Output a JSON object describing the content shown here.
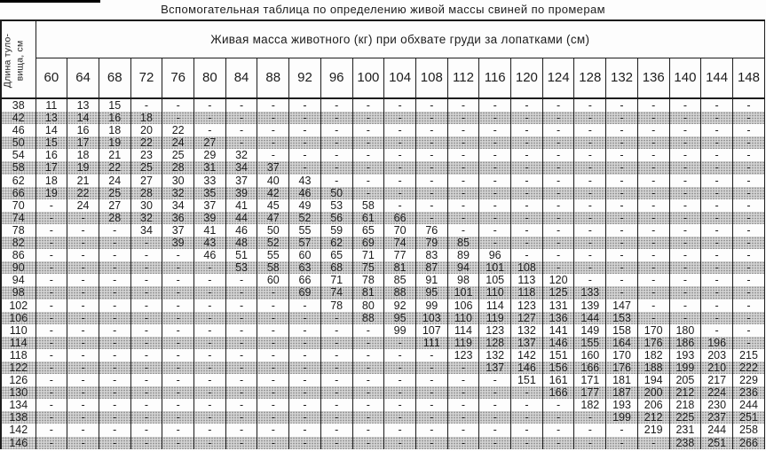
{
  "page_title": "Вспомогательная таблица по определению живой массы свиней по промерам",
  "colors": {
    "ink": "#1c1c1c",
    "paper": "#fdfdfd",
    "shade_base": "#d6d6d6",
    "shade_dot": "#979797"
  },
  "table": {
    "corner_label_line1": "Длина туло-",
    "corner_label_line2": "вища, см",
    "span_header": "Живая масса животного (кг) при обхвате груди за лопатками (см)",
    "col_headers": [
      "60",
      "64",
      "68",
      "72",
      "76",
      "80",
      "84",
      "88",
      "92",
      "96",
      "100",
      "104",
      "108",
      "112",
      "116",
      "120",
      "124",
      "128",
      "132",
      "136",
      "140",
      "144",
      "148"
    ],
    "rows": [
      {
        "label": "38",
        "cells": [
          "11",
          "13",
          "15",
          "-",
          "-",
          "-",
          "-",
          "-",
          "-",
          "-",
          "-",
          "-",
          "-",
          "-",
          "-",
          "-",
          "-",
          "-",
          "-",
          "-",
          "-",
          "-",
          "-"
        ]
      },
      {
        "label": "42",
        "cells": [
          "13",
          "14",
          "16",
          "18",
          "-",
          "-",
          "-",
          "-",
          "-",
          "-",
          "-",
          "-",
          "-",
          "-",
          "-",
          "-",
          "-",
          "-",
          "-",
          "-",
          "-",
          "-",
          "-"
        ]
      },
      {
        "label": "46",
        "cells": [
          "14",
          "16",
          "18",
          "20",
          "22",
          "-",
          "-",
          "-",
          "-",
          "-",
          "-",
          "-",
          "-",
          "-",
          "-",
          "-",
          "-",
          "-",
          "-",
          "-",
          "-",
          "-",
          "-"
        ]
      },
      {
        "label": "50",
        "cells": [
          "15",
          "17",
          "19",
          "22",
          "24",
          "27",
          "-",
          "-",
          "-",
          "-",
          "-",
          "-",
          "-",
          "-",
          "-",
          "-",
          "-",
          "-",
          "-",
          "-",
          "-",
          "-",
          "-"
        ]
      },
      {
        "label": "54",
        "cells": [
          "16",
          "18",
          "21",
          "23",
          "25",
          "29",
          "32",
          "-",
          "-",
          "-",
          "-",
          "-",
          "-",
          "-",
          "-",
          "-",
          "-",
          "-",
          "-",
          "-",
          "-",
          "-",
          "-"
        ]
      },
      {
        "label": "58",
        "cells": [
          "17",
          "19",
          "22",
          "25",
          "28",
          "31",
          "34",
          "37",
          "-",
          "-",
          "-",
          "-",
          "-",
          "-",
          "-",
          "-",
          "-",
          "-",
          "-",
          "-",
          "-",
          "-",
          "-"
        ]
      },
      {
        "label": "62",
        "cells": [
          "18",
          "21",
          "24",
          "27",
          "30",
          "33",
          "37",
          "40",
          "43",
          "-",
          "-",
          "-",
          "-",
          "-",
          "-",
          "-",
          "-",
          "-",
          "-",
          "-",
          "-",
          "-",
          "-"
        ]
      },
      {
        "label": "66",
        "cells": [
          "19",
          "22",
          "25",
          "28",
          "32",
          "35",
          "39",
          "42",
          "46",
          "50",
          "-",
          "-",
          "-",
          "-",
          "-",
          "-",
          "-",
          "-",
          "-",
          "-",
          "-",
          "-",
          "-"
        ]
      },
      {
        "label": "70",
        "cells": [
          "-",
          "24",
          "27",
          "30",
          "34",
          "37",
          "41",
          "45",
          "49",
          "53",
          "58",
          "-",
          "-",
          "-",
          "-",
          "-",
          "-",
          "-",
          "-",
          "-",
          "-",
          "-",
          "-"
        ]
      },
      {
        "label": "74",
        "cells": [
          "-",
          "-",
          "28",
          "32",
          "36",
          "39",
          "44",
          "47",
          "52",
          "56",
          "61",
          "66",
          "-",
          "-",
          "-",
          "-",
          "-",
          "-",
          "-",
          "-",
          "-",
          "-",
          "-"
        ]
      },
      {
        "label": "78",
        "cells": [
          "-",
          "-",
          "-",
          "34",
          "37",
          "41",
          "46",
          "50",
          "55",
          "59",
          "65",
          "70",
          "76",
          "-",
          "-",
          "-",
          "-",
          "-",
          "-",
          "-",
          "-",
          "-",
          "-"
        ]
      },
      {
        "label": "82",
        "cells": [
          "-",
          "-",
          "-",
          "-",
          "39",
          "43",
          "48",
          "52",
          "57",
          "62",
          "69",
          "74",
          "79",
          "85",
          "-",
          "-",
          "-",
          "-",
          "-",
          "-",
          "-",
          "-",
          "-"
        ]
      },
      {
        "label": "86",
        "cells": [
          "-",
          "-",
          "-",
          "-",
          "-",
          "46",
          "51",
          "55",
          "60",
          "65",
          "71",
          "77",
          "83",
          "89",
          "96",
          "-",
          "-",
          "-",
          "-",
          "-",
          "-",
          "-",
          "-"
        ]
      },
      {
        "label": "90",
        "cells": [
          "-",
          "-",
          "-",
          "-",
          "-",
          "-",
          "53",
          "58",
          "63",
          "68",
          "75",
          "81",
          "87",
          "94",
          "101",
          "108",
          "-",
          "-",
          "-",
          "-",
          "-",
          "-",
          "-"
        ]
      },
      {
        "label": "94",
        "cells": [
          "-",
          "-",
          "-",
          "-",
          "-",
          "-",
          "-",
          "60",
          "66",
          "71",
          "78",
          "85",
          "91",
          "98",
          "105",
          "113",
          "120",
          "-",
          "-",
          "-",
          "-",
          "-",
          "-"
        ]
      },
      {
        "label": "98",
        "cells": [
          "-",
          "-",
          "-",
          "-",
          "-",
          "-",
          "-",
          "-",
          "69",
          "74",
          "81",
          "88",
          "95",
          "101",
          "110",
          "118",
          "125",
          "133",
          "-",
          "-",
          "-",
          "-",
          "-"
        ]
      },
      {
        "label": "102",
        "cells": [
          "-",
          "-",
          "-",
          "-",
          "-",
          "-",
          "-",
          "-",
          "-",
          "78",
          "80",
          "92",
          "99",
          "106",
          "114",
          "123",
          "131",
          "139",
          "147",
          "-",
          "-",
          "-",
          "-"
        ]
      },
      {
        "label": "106",
        "cells": [
          "-",
          "-",
          "-",
          "-",
          "-",
          "-",
          "-",
          "-",
          "-",
          "-",
          "88",
          "95",
          "103",
          "110",
          "119",
          "127",
          "136",
          "144",
          "153",
          "-",
          "-",
          "-",
          "-"
        ]
      },
      {
        "label": "110",
        "cells": [
          "-",
          "-",
          "-",
          "-",
          "-",
          "-",
          "-",
          "-",
          "-",
          "-",
          "-",
          "99",
          "107",
          "114",
          "123",
          "132",
          "141",
          "149",
          "158",
          "170",
          "180",
          "-",
          "-"
        ]
      },
      {
        "label": "114",
        "cells": [
          "-",
          "-",
          "-",
          "-",
          "-",
          "-",
          "-",
          "-",
          "-",
          "-",
          "-",
          "-",
          "111",
          "119",
          "128",
          "137",
          "146",
          "155",
          "164",
          "176",
          "186",
          "196",
          "-"
        ]
      },
      {
        "label": "118",
        "cells": [
          "-",
          "-",
          "-",
          "-",
          "-",
          "-",
          "-",
          "-",
          "-",
          "-",
          "-",
          "-",
          "-",
          "123",
          "132",
          "142",
          "151",
          "160",
          "170",
          "182",
          "193",
          "203",
          "215"
        ]
      },
      {
        "label": "122",
        "cells": [
          "-",
          "-",
          "-",
          "-",
          "-",
          "-",
          "-",
          "-",
          "-",
          "-",
          "-",
          "-",
          "-",
          "-",
          "137",
          "146",
          "156",
          "166",
          "176",
          "188",
          "199",
          "210",
          "222"
        ]
      },
      {
        "label": "126",
        "cells": [
          "-",
          "-",
          "-",
          "-",
          "-",
          "-",
          "-",
          "-",
          "-",
          "-",
          "-",
          "-",
          "-",
          "-",
          "-",
          "151",
          "161",
          "171",
          "181",
          "194",
          "205",
          "217",
          "229"
        ]
      },
      {
        "label": "130",
        "cells": [
          "-",
          "-",
          "-",
          "-",
          "-",
          "-",
          "-",
          "-",
          "-",
          "-",
          "-",
          "-",
          "-",
          "-",
          "-",
          "-",
          "166",
          "177",
          "187",
          "200",
          "212",
          "224",
          "236"
        ]
      },
      {
        "label": "134",
        "cells": [
          "-",
          "-",
          "-",
          "-",
          "-",
          "-",
          "-",
          "-",
          "-",
          "-",
          "-",
          "-",
          "-",
          "-",
          "-",
          "-",
          "-",
          "182",
          "193",
          "206",
          "218",
          "230",
          "244"
        ]
      },
      {
        "label": "138",
        "cells": [
          "-",
          "-",
          "-",
          "-",
          "-",
          "-",
          "-",
          "-",
          "-",
          "-",
          "-",
          "-",
          "-",
          "-",
          "-",
          "-",
          "-",
          "-",
          "199",
          "212",
          "225",
          "237",
          "251"
        ]
      },
      {
        "label": "142",
        "cells": [
          "-",
          "-",
          "-",
          "-",
          "-",
          "-",
          "-",
          "-",
          "-",
          "-",
          "-",
          "-",
          "-",
          "-",
          "-",
          "-",
          "-",
          "-",
          "-",
          "219",
          "231",
          "244",
          "258"
        ]
      },
      {
        "label": "146",
        "cells": [
          "-",
          "-",
          "-",
          "-",
          "-",
          "-",
          "-",
          "-",
          "-",
          "-",
          "-",
          "-",
          "-",
          "-",
          "-",
          "-",
          "-",
          "-",
          "-",
          "-",
          "238",
          "251",
          "266"
        ]
      }
    ]
  }
}
